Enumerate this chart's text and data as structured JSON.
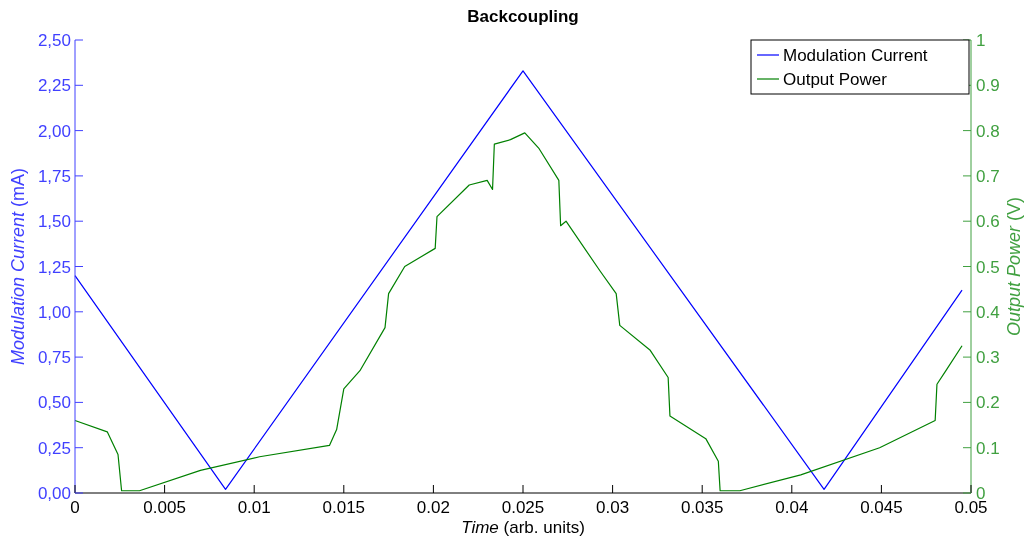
{
  "chart_data": {
    "type": "line",
    "title": "Backcoupling",
    "xlabel": "Time (arb. units)",
    "ylabel": "Modulation Current (mA)",
    "y2label": "Output Power (V)",
    "xlim": [
      0,
      0.05
    ],
    "xticks": [
      0,
      0.005,
      0.01,
      0.015,
      0.02,
      0.025,
      0.03,
      0.035,
      0.04,
      0.045,
      0.05
    ],
    "ylim": [
      0,
      2.5
    ],
    "yticks": [
      {
        "value": 0,
        "label": "0,00"
      },
      {
        "value": 0.25,
        "label": "0,25"
      },
      {
        "value": 0.5,
        "label": "0,50"
      },
      {
        "value": 0.75,
        "label": "0,75"
      },
      {
        "value": 1,
        "label": "1,00"
      },
      {
        "value": 1.25,
        "label": "1,25"
      },
      {
        "value": 1.5,
        "label": "1,50"
      },
      {
        "value": 1.75,
        "label": "1,75"
      },
      {
        "value": 2,
        "label": "2,00"
      },
      {
        "value": 2.25,
        "label": "2,25"
      },
      {
        "value": 2.5,
        "label": "2,50"
      }
    ],
    "y2lim": [
      0,
      1
    ],
    "y2ticks": [
      0,
      0.1,
      0.2,
      0.3,
      0.4,
      0.5,
      0.6,
      0.7,
      0.8,
      0.9,
      1
    ],
    "legend": "top right",
    "grid": false,
    "series": [
      {
        "name": "Modulation Current",
        "color": "#0000ff",
        "x": [
          0,
          0.0084,
          0.025,
          0.0418,
          0.0495
        ],
        "values": [
          1.2,
          0.02,
          2.33,
          0.02,
          1.12
        ]
      },
      {
        "name": "Output Power",
        "color": "#008000",
        "axis": "y2",
        "x": [
          0,
          0.0018,
          0.0024,
          0.0026,
          0.0036,
          0.007,
          0.0103,
          0.0142,
          0.0146,
          0.015,
          0.0159,
          0.0173,
          0.0175,
          0.0184,
          0.0201,
          0.0202,
          0.022,
          0.023,
          0.0233,
          0.0234,
          0.0243,
          0.0251,
          0.0259,
          0.027,
          0.0271,
          0.0274,
          0.0293,
          0.0302,
          0.0304,
          0.0321,
          0.0331,
          0.0332,
          0.0352,
          0.0359,
          0.036,
          0.0371,
          0.0405,
          0.0449,
          0.048,
          0.0481,
          0.0486,
          0.0495
        ],
        "values": [
          0.16,
          0.135,
          0.085,
          0.005,
          0.005,
          0.05,
          0.08,
          0.105,
          0.14,
          0.23,
          0.27,
          0.365,
          0.44,
          0.5,
          0.54,
          0.61,
          0.68,
          0.69,
          0.67,
          0.77,
          0.78,
          0.795,
          0.76,
          0.69,
          0.59,
          0.6,
          0.49,
          0.44,
          0.37,
          0.315,
          0.255,
          0.17,
          0.12,
          0.07,
          0.005,
          0.005,
          0.04,
          0.1,
          0.16,
          0.24,
          0.27,
          0.325
        ]
      }
    ]
  }
}
